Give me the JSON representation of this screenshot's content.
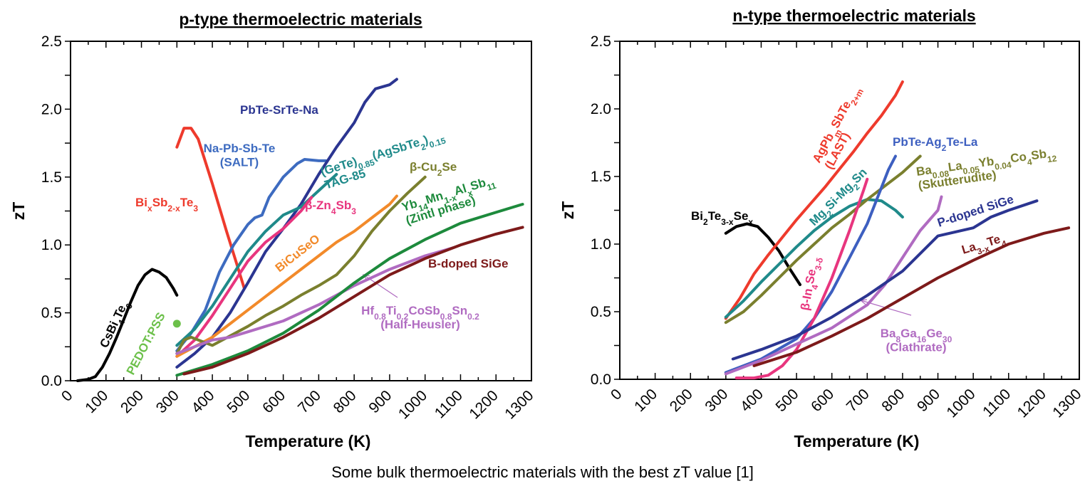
{
  "caption": "Some bulk thermoelectric materials with the best zT value [1]",
  "chart_data": [
    {
      "type": "line",
      "title": "p-type thermoelectric materials",
      "xlabel": "Temperature (K)",
      "ylabel": "zT",
      "xlim": [
        0,
        1300
      ],
      "ylim": [
        0,
        2.5
      ],
      "xticks": [
        "0",
        "100",
        "200",
        "300",
        "400",
        "500",
        "600",
        "700",
        "800",
        "900",
        "1000",
        "1100",
        "1200",
        "1300"
      ],
      "yticks": [
        "0.0",
        "0.5",
        "1.0",
        "1.5",
        "2.0",
        "2.5"
      ],
      "grid": false,
      "series": [
        {
          "name": "CsBi4Te6",
          "label": "CsBi<sub>4</sub>Te<sub>6</sub>",
          "color": "#000000",
          "x": [
            20,
            50,
            70,
            90,
            110,
            130,
            150,
            170,
            190,
            210,
            230,
            250,
            270,
            290,
            300
          ],
          "y": [
            0.0,
            0.01,
            0.03,
            0.1,
            0.2,
            0.32,
            0.45,
            0.58,
            0.7,
            0.78,
            0.82,
            0.8,
            0.76,
            0.68,
            0.63
          ]
        },
        {
          "name": "PEDOT:PSS",
          "label": "PEDOT:PSS",
          "color": "#6cc04a",
          "marker": "point",
          "x": [
            300
          ],
          "y": [
            0.42
          ]
        },
        {
          "name": "BixSb2-xTe3",
          "label": "Bi<sub>x</sub>Sb<sub>2-x</sub>Te<sub>3</sub>",
          "color": "#ee3a2c",
          "x": [
            300,
            320,
            340,
            360,
            400,
            440,
            470,
            490
          ],
          "y": [
            1.72,
            1.86,
            1.86,
            1.78,
            1.45,
            1.1,
            0.85,
            0.68
          ]
        },
        {
          "name": "Na-Pb-Sb-Te (SALT)",
          "label": "Na-Pb-Sb-Te|(SALT)",
          "color": "#3d6bc0",
          "x": [
            300,
            340,
            380,
            420,
            460,
            500,
            520,
            540,
            560,
            600,
            640,
            660,
            700,
            720
          ],
          "y": [
            0.22,
            0.35,
            0.52,
            0.8,
            1.0,
            1.15,
            1.2,
            1.22,
            1.35,
            1.5,
            1.6,
            1.63,
            1.62,
            1.62
          ]
        },
        {
          "name": "PbTe-SrTe-Na",
          "label": "PbTe-SrTe-Na",
          "color": "#2b3591",
          "x": [
            300,
            350,
            400,
            450,
            500,
            550,
            600,
            650,
            700,
            750,
            800,
            830,
            860,
            900,
            920
          ],
          "y": [
            0.1,
            0.2,
            0.32,
            0.5,
            0.72,
            0.95,
            1.12,
            1.3,
            1.52,
            1.72,
            1.9,
            2.05,
            2.15,
            2.18,
            2.22
          ]
        },
        {
          "name": "(GeTe)0.85(AgSbTe2)0.15 TAG-85",
          "label": "(GeTe)<sub>0.85</sub>(AgSbTe<sub>2</sub>)<sub>0.15</sub>|TAG-85",
          "color": "#1f8a8a",
          "x": [
            300,
            350,
            400,
            450,
            500,
            550,
            600,
            650,
            700,
            750
          ],
          "y": [
            0.26,
            0.38,
            0.55,
            0.75,
            0.95,
            1.1,
            1.22,
            1.28,
            1.4,
            1.52
          ]
        },
        {
          "name": "β-Zn4Sb3",
          "label": "β-Zn<sub>4</sub>Sb<sub>3</sub>",
          "color": "#e8357e",
          "x": [
            300,
            350,
            400,
            450,
            500,
            550,
            600,
            650,
            680
          ],
          "y": [
            0.18,
            0.3,
            0.48,
            0.68,
            0.88,
            1.02,
            1.12,
            1.25,
            1.35
          ]
        },
        {
          "name": "BiCuSeO",
          "label": "BiCuSeO",
          "color": "#f28a2a",
          "x": [
            300,
            350,
            400,
            450,
            500,
            550,
            600,
            650,
            700,
            750,
            800,
            850,
            900,
            920
          ],
          "y": [
            0.18,
            0.25,
            0.32,
            0.42,
            0.52,
            0.62,
            0.72,
            0.82,
            0.92,
            1.02,
            1.1,
            1.2,
            1.3,
            1.36
          ]
        },
        {
          "name": "β-Cu2Se",
          "label": "β-Cu<sub>2</sub>Se",
          "color": "#7a7f2e",
          "x": [
            300,
            320,
            340,
            360,
            400,
            450,
            500,
            550,
            600,
            650,
            700,
            750,
            800,
            850,
            900,
            950,
            1000
          ],
          "y": [
            0.2,
            0.3,
            0.32,
            0.3,
            0.26,
            0.33,
            0.4,
            0.48,
            0.55,
            0.63,
            0.7,
            0.78,
            0.92,
            1.1,
            1.25,
            1.38,
            1.5
          ]
        },
        {
          "name": "Hf0.8Ti0.2CoSb0.8Sn0.2 (Half-Heusler)",
          "label": "Hf<sub>0.8</sub>Ti<sub>0.2</sub>CoSb<sub>0.8</sub>Sn<sub>0.2</sub>|(Half-Heusler)",
          "color": "#b06bc1",
          "x": [
            300,
            350,
            400,
            450,
            500,
            600,
            700,
            800,
            900,
            1000,
            1080
          ],
          "y": [
            0.2,
            0.25,
            0.3,
            0.32,
            0.36,
            0.44,
            0.56,
            0.7,
            0.82,
            0.92,
            0.98
          ]
        },
        {
          "name": "Yb14Mn1-xAlxSb11 (Zintl phase)",
          "label": "Yb<sub>14</sub>Mn<sub>1-x</sub>Al<sub>x</sub>Sb<sub>11</sub>|(Zintl phase)",
          "color": "#1d8a3c",
          "x": [
            300,
            400,
            500,
            600,
            700,
            800,
            900,
            1000,
            1100,
            1200,
            1275
          ],
          "y": [
            0.04,
            0.12,
            0.22,
            0.35,
            0.52,
            0.72,
            0.9,
            1.04,
            1.16,
            1.24,
            1.3
          ]
        },
        {
          "name": "B-doped SiGe",
          "label": "B-doped SiGe",
          "color": "#7d1a1a",
          "x": [
            320,
            400,
            500,
            600,
            700,
            800,
            900,
            1000,
            1100,
            1200,
            1275
          ],
          "y": [
            0.05,
            0.1,
            0.2,
            0.32,
            0.46,
            0.62,
            0.78,
            0.9,
            1.0,
            1.08,
            1.13
          ]
        }
      ]
    },
    {
      "type": "line",
      "title": "n-type thermoelectric materials",
      "xlabel": "Temperature (K)",
      "ylabel": "zT",
      "xlim": [
        0,
        1300
      ],
      "ylim": [
        0,
        2.5
      ],
      "xticks": [
        "0",
        "100",
        "200",
        "300",
        "400",
        "500",
        "600",
        "700",
        "800",
        "900",
        "1000",
        "1100",
        "1200",
        "1300"
      ],
      "yticks": [
        "0.0",
        "0.5",
        "1.0",
        "1.5",
        "2.0",
        "2.5"
      ],
      "grid": false,
      "series": [
        {
          "name": "Bi2Te3-xSex",
          "label": "Bi<sub>2</sub>Te<sub>3-x</sub>Se<sub>x</sub>",
          "color": "#000000",
          "x": [
            300,
            330,
            360,
            390,
            420,
            450,
            480,
            510
          ],
          "y": [
            1.08,
            1.13,
            1.15,
            1.13,
            1.05,
            0.95,
            0.82,
            0.7
          ]
        },
        {
          "name": "AgPbmSbTe2+m (LAST)",
          "label": "AgPb<sub>m</sub>SbTe<sub>2+m</sub>|(LAST)",
          "color": "#ee3a2c",
          "x": [
            300,
            340,
            380,
            420,
            460,
            500,
            540,
            580,
            620,
            660,
            700,
            740,
            780,
            800
          ],
          "y": [
            0.45,
            0.6,
            0.78,
            0.92,
            1.05,
            1.18,
            1.3,
            1.42,
            1.55,
            1.68,
            1.82,
            1.95,
            2.1,
            2.2
          ]
        },
        {
          "name": "Mg2Si-Mg2Sn",
          "label": "Mg<sub>2</sub>Si-Mg<sub>2</sub>Sn",
          "color": "#1f8a8a",
          "x": [
            300,
            350,
            400,
            450,
            500,
            550,
            600,
            650,
            700,
            740,
            780,
            800
          ],
          "y": [
            0.46,
            0.58,
            0.72,
            0.85,
            0.98,
            1.1,
            1.2,
            1.28,
            1.33,
            1.32,
            1.25,
            1.2
          ]
        },
        {
          "name": "Ba0.08La0.05Yb0.04Co4Sb12 (Skutterudite)",
          "label": "Ba<sub>0.08</sub>La<sub>0.05</sub>Yb<sub>0.04</sub>Co<sub>4</sub>Sb<sub>12</sub>|(Skutterudite)",
          "color": "#7a7f2e",
          "x": [
            300,
            350,
            400,
            450,
            500,
            550,
            600,
            650,
            700,
            750,
            800,
            850
          ],
          "y": [
            0.42,
            0.5,
            0.62,
            0.75,
            0.88,
            1.0,
            1.12,
            1.22,
            1.33,
            1.43,
            1.53,
            1.65
          ]
        },
        {
          "name": "PbTe-Ag2Te-La",
          "label": "PbTe-Ag<sub>2</sub>Te-La",
          "color": "#3d5fc0",
          "x": [
            300,
            400,
            500,
            550,
            600,
            650,
            700,
            730,
            760,
            780
          ],
          "y": [
            0.05,
            0.15,
            0.3,
            0.45,
            0.65,
            0.9,
            1.15,
            1.35,
            1.55,
            1.65
          ]
        },
        {
          "name": "β-In4Se3-δ",
          "label": "β-In<sub>4</sub>Se<sub>3-δ</sub>",
          "color": "#e8357e",
          "x": [
            330,
            380,
            420,
            460,
            500,
            550,
            600,
            650,
            690,
            700
          ],
          "y": [
            0.01,
            0.01,
            0.03,
            0.1,
            0.22,
            0.45,
            0.75,
            1.1,
            1.4,
            1.48
          ]
        },
        {
          "name": "Ba8Ga16Ge30 (Clathrate)",
          "label": "Ba<sub>8</sub>Ga<sub>16</sub>Ge<sub>30</sub>|(Clathrate)",
          "color": "#b06bc1",
          "x": [
            300,
            400,
            500,
            600,
            700,
            750,
            800,
            850,
            900,
            910
          ],
          "y": [
            0.04,
            0.14,
            0.26,
            0.38,
            0.55,
            0.7,
            0.9,
            1.1,
            1.25,
            1.35
          ]
        },
        {
          "name": "P-doped SiGe",
          "label": "P-doped SiGe",
          "color": "#2b3591",
          "x": [
            320,
            400,
            500,
            600,
            700,
            800,
            900,
            1000,
            1050,
            1100,
            1180
          ],
          "y": [
            0.15,
            0.22,
            0.32,
            0.46,
            0.62,
            0.8,
            1.06,
            1.12,
            1.2,
            1.25,
            1.32
          ]
        },
        {
          "name": "La3-xTe4",
          "label": "La<sub>3-x</sub>Te<sub>4</sub>",
          "color": "#7d1a1a",
          "x": [
            380,
            500,
            600,
            700,
            800,
            900,
            1000,
            1100,
            1200,
            1270
          ],
          "y": [
            0.1,
            0.2,
            0.32,
            0.45,
            0.6,
            0.75,
            0.88,
            1.0,
            1.08,
            1.12
          ]
        }
      ]
    }
  ]
}
